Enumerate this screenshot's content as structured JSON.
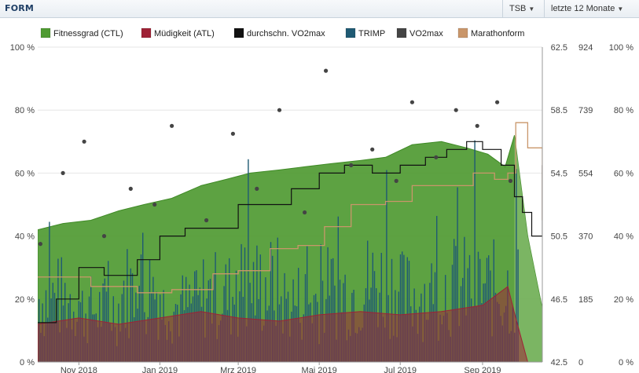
{
  "header": {
    "title": "FORM",
    "dropdown_metric": "TSB",
    "dropdown_range": "letzte 12 Monate"
  },
  "colors": {
    "ctl": "#4f9a32",
    "atl": "#9e2236",
    "vo2_avg": "#111111",
    "trimp": "#1f5a73",
    "vo2": "#444444",
    "marathon": "#c9966a"
  },
  "icons": {
    "dropdown": "chevron-down-icon"
  },
  "chart_data": {
    "type": "area",
    "legend": [
      "Fitnessgrad (CTL)",
      "Müdigkeit (ATL)",
      "durchschn. VO2max",
      "TRIMP",
      "VO2max",
      "Marathonform"
    ],
    "legend_position": "top",
    "x_ticks": [
      "Nov 2018",
      "Jan 2019",
      "Mrz 2019",
      "Mai 2019",
      "Jul 2019",
      "Sep 2019"
    ],
    "axes": {
      "left_percent": {
        "ticks": [
          "0 %",
          "20 %",
          "40 %",
          "60 %",
          "80 %",
          "100 %"
        ],
        "range": [
          0,
          100
        ]
      },
      "vo2max": {
        "ticks": [
          "42.5",
          "46.5",
          "50.5",
          "54.5",
          "58.5",
          "62.5"
        ],
        "range": [
          42.5,
          62.5
        ]
      },
      "trimp": {
        "ticks": [
          "0",
          "185",
          "370",
          "554",
          "739",
          "924"
        ],
        "range": [
          0,
          924
        ]
      },
      "right_percent": {
        "ticks": [
          "0 %",
          "20 %",
          "40 %",
          "60 %",
          "80 %",
          "100 %"
        ],
        "range": [
          0,
          100
        ]
      }
    },
    "date_range": [
      "2018-10-01",
      "2019-10-16"
    ],
    "series": [
      {
        "name": "Fitnessgrad (CTL)",
        "unit": "%",
        "x": [
          "2018-10-01",
          "2018-10-20",
          "2018-11-10",
          "2018-12-01",
          "2018-12-20",
          "2019-01-10",
          "2019-02-01",
          "2019-02-20",
          "2019-03-10",
          "2019-04-01",
          "2019-04-20",
          "2019-05-10",
          "2019-06-01",
          "2019-06-20",
          "2019-07-10",
          "2019-08-01",
          "2019-08-20",
          "2019-09-05",
          "2019-09-18",
          "2019-09-25",
          "2019-10-05",
          "2019-10-16"
        ],
        "y": [
          42,
          44,
          45,
          48,
          50,
          52,
          56,
          58,
          60,
          61,
          62,
          63,
          64,
          65,
          69,
          70,
          68,
          66,
          62,
          72,
          40,
          17
        ]
      },
      {
        "name": "Müdigkeit (ATL)",
        "unit": "%",
        "x": [
          "2018-10-01",
          "2018-11-01",
          "2018-12-01",
          "2019-01-01",
          "2019-02-01",
          "2019-03-01",
          "2019-04-01",
          "2019-05-01",
          "2019-06-01",
          "2019-07-01",
          "2019-08-01",
          "2019-09-01",
          "2019-09-20",
          "2019-09-26",
          "2019-10-05"
        ],
        "y": [
          12,
          14,
          12,
          14,
          16,
          14,
          13,
          15,
          16,
          15,
          16,
          18,
          24,
          14,
          0
        ]
      },
      {
        "name": "durchschn. VO2max",
        "unit": "VO2max",
        "x": [
          "2018-10-01",
          "2018-10-15",
          "2018-11-01",
          "2018-11-20",
          "2018-12-15",
          "2019-01-01",
          "2019-01-20",
          "2019-02-15",
          "2019-03-01",
          "2019-03-20",
          "2019-04-10",
          "2019-05-01",
          "2019-05-20",
          "2019-06-10",
          "2019-07-01",
          "2019-07-20",
          "2019-08-05",
          "2019-08-20",
          "2019-09-01",
          "2019-09-15",
          "2019-09-25",
          "2019-10-01",
          "2019-10-08",
          "2019-10-16"
        ],
        "y": [
          45.0,
          46.5,
          48.5,
          48.0,
          49.0,
          50.5,
          51.0,
          51.0,
          52.5,
          52.5,
          53.5,
          54.5,
          55.0,
          54.5,
          55.0,
          55.5,
          56.0,
          56.5,
          56.0,
          55.0,
          53.0,
          52.0,
          50.5,
          55.0
        ]
      },
      {
        "name": "TRIMP",
        "unit": "TRIMP",
        "x": [
          "2018-10-01",
          "2018-11-01",
          "2018-12-01",
          "2019-01-01",
          "2019-02-01",
          "2019-03-01",
          "2019-04-01",
          "2019-05-01",
          "2019-06-01",
          "2019-07-01",
          "2019-08-01",
          "2019-09-01",
          "2019-09-25"
        ],
        "y": [
          220,
          180,
          250,
          190,
          230,
          260,
          210,
          240,
          270,
          230,
          260,
          250,
          450
        ]
      },
      {
        "name": "VO2max",
        "unit": "VO2max",
        "x": [
          "2018-10-03",
          "2018-10-20",
          "2018-11-05",
          "2018-11-20",
          "2018-12-10",
          "2018-12-28",
          "2019-01-10",
          "2019-02-05",
          "2019-02-25",
          "2019-03-15",
          "2019-04-01",
          "2019-04-20",
          "2019-05-06",
          "2019-05-25",
          "2019-06-10",
          "2019-06-28",
          "2019-07-10",
          "2019-07-28",
          "2019-08-12",
          "2019-08-28",
          "2019-09-12",
          "2019-09-22"
        ],
        "y": [
          50.0,
          54.5,
          56.5,
          50.5,
          53.5,
          52.5,
          57.5,
          51.5,
          57.0,
          53.5,
          58.5,
          52.0,
          61.0,
          55.0,
          56.0,
          54.0,
          59.0,
          55.5,
          58.5,
          57.5,
          59.0,
          54.0
        ]
      },
      {
        "name": "Marathonform",
        "unit": "%",
        "x": [
          "2018-10-01",
          "2018-11-10",
          "2018-12-15",
          "2019-01-10",
          "2019-02-10",
          "2019-03-01",
          "2019-03-25",
          "2019-04-15",
          "2019-05-05",
          "2019-05-25",
          "2019-06-20",
          "2019-07-10",
          "2019-08-05",
          "2019-08-25",
          "2019-09-10",
          "2019-09-20",
          "2019-09-26",
          "2019-10-05",
          "2019-10-16"
        ],
        "y": [
          27,
          24,
          22,
          23,
          28,
          29,
          36,
          37,
          43,
          50,
          51,
          56,
          56,
          60,
          58,
          60,
          76,
          68,
          45
        ]
      }
    ]
  }
}
